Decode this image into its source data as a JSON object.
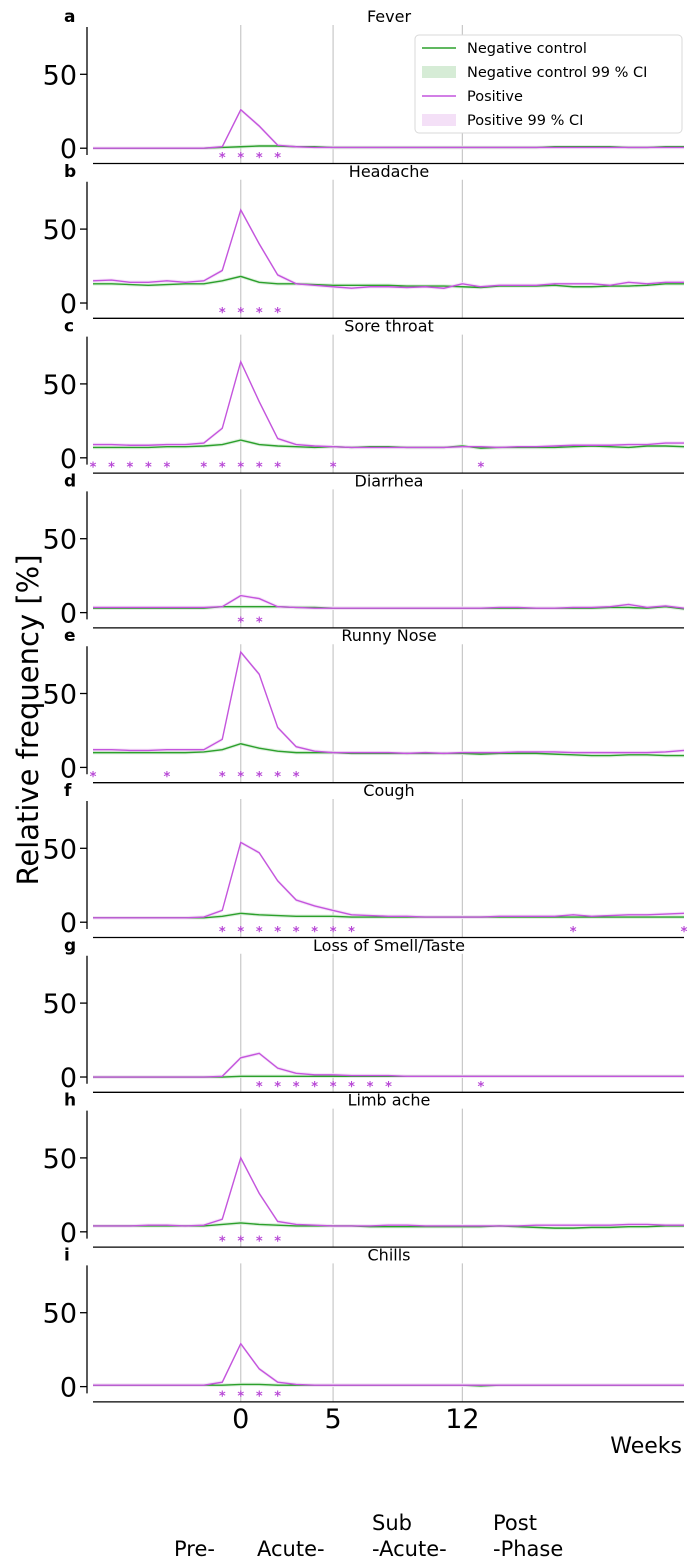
{
  "figure": {
    "ylabel": "Relative frequency [%]",
    "xlabel": "Weeks",
    "x_tick_labels": [
      "0",
      "5",
      "12"
    ],
    "y_tick_labels": [
      "0",
      "50"
    ],
    "phases": [
      "Pre-",
      "Acute-",
      "Sub\n-Acute-",
      "Post\n-Phase"
    ],
    "legend": {
      "placement": "top-right",
      "entries": [
        "Negative control",
        "Negative control 99 % CI",
        "Positive",
        "Positive 99 % CI"
      ]
    },
    "colors": {
      "negative": "#2ca02c",
      "negative_ci": "#d6ecd6",
      "positive": "#c455dd",
      "positive_ci": "#f4e0f7",
      "star": "#b84ad6",
      "vline": "#c8c8c8"
    },
    "significance_marker": "*"
  },
  "chart_data": [
    {
      "type": "line",
      "panel": "a",
      "title": "Fever",
      "ylim": [
        -10,
        82
      ],
      "yticks": [
        0,
        50
      ],
      "x": [
        -8,
        -7,
        -6,
        -5,
        -4,
        -3,
        -2,
        -1,
        0,
        1,
        2,
        3,
        4,
        5,
        6,
        7,
        8,
        9,
        10,
        11,
        12,
        13,
        14,
        15,
        16,
        17,
        18,
        19,
        20,
        21,
        22,
        23,
        24
      ],
      "series": [
        {
          "name": "Negative control",
          "values": [
            0,
            0,
            0,
            0,
            0,
            0,
            0,
            0.5,
            1,
            1.5,
            1.5,
            1,
            1,
            0.5,
            0.5,
            0.5,
            0.5,
            0.5,
            0.5,
            0.5,
            0.5,
            0.5,
            0.5,
            0.5,
            0.5,
            1,
            1,
            1,
            1,
            0.5,
            0.5,
            1,
            1
          ]
        },
        {
          "name": "Positive",
          "values": [
            0,
            0,
            0,
            0,
            0,
            0,
            0,
            1,
            26,
            15,
            2,
            1,
            0.5,
            0.5,
            0.5,
            0.5,
            0.5,
            0.5,
            0.5,
            0.5,
            0.5,
            0.5,
            0.5,
            0.5,
            0.5,
            0.5,
            0.5,
            0.5,
            0.5,
            0.5,
            0.5,
            0.5,
            0.5
          ]
        }
      ],
      "significant_weeks": [
        -1,
        0,
        1,
        2
      ]
    },
    {
      "type": "line",
      "panel": "b",
      "title": "Headache",
      "ylim": [
        -10,
        82
      ],
      "yticks": [
        0,
        50
      ],
      "x": [
        -8,
        -7,
        -6,
        -5,
        -4,
        -3,
        -2,
        -1,
        0,
        1,
        2,
        3,
        4,
        5,
        6,
        7,
        8,
        9,
        10,
        11,
        12,
        13,
        14,
        15,
        16,
        17,
        18,
        19,
        20,
        21,
        22,
        23,
        24
      ],
      "series": [
        {
          "name": "Negative control",
          "values": [
            13,
            13,
            12.5,
            12,
            12.5,
            13,
            13,
            15,
            18,
            14,
            13,
            13,
            12.5,
            12,
            12,
            12,
            12,
            11.5,
            11.5,
            11.5,
            11,
            10.5,
            11.5,
            11.5,
            11.5,
            12,
            11,
            11,
            11.5,
            11.5,
            12,
            13,
            13
          ]
        },
        {
          "name": "Positive",
          "values": [
            15,
            15.5,
            14,
            14,
            15,
            14,
            15,
            22,
            63,
            40,
            19,
            13,
            12,
            11,
            10,
            11,
            11,
            10.5,
            11,
            10,
            13,
            11,
            12,
            12,
            12,
            13,
            13,
            13,
            12,
            14,
            13,
            14,
            14
          ]
        }
      ],
      "significant_weeks": [
        -1,
        0,
        1,
        2
      ]
    },
    {
      "type": "line",
      "panel": "c",
      "title": "Sore throat",
      "ylim": [
        -10,
        82
      ],
      "yticks": [
        0,
        50
      ],
      "x": [
        -8,
        -7,
        -6,
        -5,
        -4,
        -3,
        -2,
        -1,
        0,
        1,
        2,
        3,
        4,
        5,
        6,
        7,
        8,
        9,
        10,
        11,
        12,
        13,
        14,
        15,
        16,
        17,
        18,
        19,
        20,
        21,
        22,
        23,
        24
      ],
      "series": [
        {
          "name": "Negative control",
          "values": [
            7,
            7,
            7,
            7,
            7.5,
            7.5,
            8,
            9,
            12,
            9,
            8,
            7.5,
            7,
            7.5,
            7,
            7.5,
            7.5,
            7,
            7,
            7,
            8,
            6.5,
            7,
            7,
            7,
            7,
            7.5,
            8,
            7.5,
            7,
            8,
            8,
            7.5
          ]
        },
        {
          "name": "Positive",
          "values": [
            9,
            9,
            8.5,
            8.5,
            9,
            9,
            10,
            20,
            65,
            38,
            13,
            9,
            8,
            7.5,
            7,
            7,
            7,
            7,
            7,
            7,
            7.5,
            7.5,
            7,
            7.5,
            7.5,
            8,
            8.5,
            8.5,
            8.5,
            9,
            9,
            10,
            10
          ]
        }
      ],
      "significant_weeks": [
        -8,
        -7,
        -6,
        -5,
        -4,
        -2,
        -1,
        0,
        1,
        2,
        5,
        13
      ]
    },
    {
      "type": "line",
      "panel": "d",
      "title": "Diarrhea",
      "ylim": [
        -10,
        82
      ],
      "yticks": [
        0,
        50
      ],
      "x": [
        -8,
        -7,
        -6,
        -5,
        -4,
        -3,
        -2,
        -1,
        0,
        1,
        2,
        3,
        4,
        5,
        6,
        7,
        8,
        9,
        10,
        11,
        12,
        13,
        14,
        15,
        16,
        17,
        18,
        19,
        20,
        21,
        22,
        23,
        24
      ],
      "series": [
        {
          "name": "Negative control",
          "values": [
            3,
            3,
            3,
            3,
            3,
            3,
            3,
            4,
            4,
            4,
            4,
            3.5,
            3.5,
            3,
            3,
            3,
            3,
            3,
            3,
            3,
            3,
            3,
            3,
            3,
            3,
            3,
            3,
            3,
            3.5,
            3.5,
            3,
            4,
            2.5
          ]
        },
        {
          "name": "Positive",
          "values": [
            3.5,
            3.5,
            3.5,
            3.5,
            3.5,
            3.5,
            3.5,
            4,
            11.5,
            9.5,
            4,
            3.5,
            3,
            3,
            3,
            3,
            3,
            3,
            3,
            3,
            3,
            3,
            3.5,
            3.5,
            3,
            3,
            3.5,
            3.5,
            4,
            5.5,
            3.5,
            4.5,
            3
          ]
        }
      ],
      "significant_weeks": [
        0,
        1
      ]
    },
    {
      "type": "line",
      "panel": "e",
      "title": "Runny Nose",
      "ylim": [
        -10,
        82
      ],
      "yticks": [
        0,
        50
      ],
      "x": [
        -8,
        -7,
        -6,
        -5,
        -4,
        -3,
        -2,
        -1,
        0,
        1,
        2,
        3,
        4,
        5,
        6,
        7,
        8,
        9,
        10,
        11,
        12,
        13,
        14,
        15,
        16,
        17,
        18,
        19,
        20,
        21,
        22,
        23,
        24
      ],
      "series": [
        {
          "name": "Negative control",
          "values": [
            10,
            10,
            10,
            10,
            10,
            10,
            10.5,
            12,
            16,
            13,
            11,
            10,
            10,
            10,
            9.5,
            9.5,
            9.5,
            9.5,
            9.5,
            9.5,
            9.5,
            9,
            9.5,
            9.5,
            9.5,
            9,
            8.5,
            8,
            8,
            8.5,
            8.5,
            8,
            8
          ]
        },
        {
          "name": "Positive",
          "values": [
            12,
            12,
            11.5,
            11.5,
            12,
            12,
            12,
            19,
            78,
            63,
            27,
            14,
            11,
            10,
            10,
            10,
            10,
            9.5,
            10,
            9.5,
            10,
            10,
            10,
            10.5,
            10.5,
            10.5,
            10,
            10,
            10,
            10,
            10,
            10.5,
            11.5
          ]
        }
      ],
      "significant_weeks": [
        -8,
        -4,
        -1,
        0,
        1,
        2,
        3
      ]
    },
    {
      "type": "line",
      "panel": "f",
      "title": "Cough",
      "ylim": [
        -10,
        82
      ],
      "yticks": [
        0,
        50
      ],
      "x": [
        -8,
        -7,
        -6,
        -5,
        -4,
        -3,
        -2,
        -1,
        0,
        1,
        2,
        3,
        4,
        5,
        6,
        7,
        8,
        9,
        10,
        11,
        12,
        13,
        14,
        15,
        16,
        17,
        18,
        19,
        20,
        21,
        22,
        23,
        24
      ],
      "series": [
        {
          "name": "Negative control",
          "values": [
            3,
            3,
            3,
            3,
            3,
            3,
            3,
            4,
            6,
            5,
            4.5,
            4,
            4,
            4,
            3.5,
            3.5,
            3.5,
            3.5,
            3.5,
            3.5,
            3.5,
            3.5,
            3.5,
            3.5,
            3.5,
            3.5,
            3.5,
            3.5,
            3.5,
            3.5,
            3.5,
            3.5,
            3.5
          ]
        },
        {
          "name": "Positive",
          "values": [
            3,
            3,
            3,
            3,
            3,
            3,
            3.5,
            8,
            54,
            47,
            28,
            15,
            11,
            8,
            5,
            4.5,
            4,
            4,
            3.5,
            3.5,
            3.5,
            3.5,
            4,
            4,
            4,
            4,
            5,
            4,
            4.5,
            5,
            5,
            5.5,
            6
          ]
        }
      ],
      "significant_weeks": [
        -1,
        0,
        1,
        2,
        3,
        4,
        5,
        6,
        18,
        24
      ]
    },
    {
      "type": "line",
      "panel": "g",
      "title": "Loss of Smell/Taste",
      "ylim": [
        -10,
        82
      ],
      "yticks": [
        0,
        50
      ],
      "x": [
        -8,
        -7,
        -6,
        -5,
        -4,
        -3,
        -2,
        -1,
        0,
        1,
        2,
        3,
        4,
        5,
        6,
        7,
        8,
        9,
        10,
        11,
        12,
        13,
        14,
        15,
        16,
        17,
        18,
        19,
        20,
        21,
        22,
        23,
        24
      ],
      "series": [
        {
          "name": "Negative control",
          "values": [
            0,
            0,
            0,
            0,
            0,
            0,
            0,
            0,
            0.5,
            0.5,
            0.5,
            0.5,
            0.5,
            0.5,
            0.5,
            0.5,
            0.5,
            0.5,
            0.5,
            0.5,
            0.5,
            0.5,
            0.5,
            0.5,
            0.5,
            0.5,
            0.5,
            0.5,
            0.5,
            0.5,
            0.5,
            0.5,
            0.5
          ]
        },
        {
          "name": "Positive",
          "values": [
            0,
            0,
            0,
            0,
            0,
            0,
            0,
            0.5,
            13,
            16,
            6,
            2.5,
            1.5,
            1.5,
            1,
            1,
            1,
            0.5,
            0.5,
            0.5,
            0.5,
            0.5,
            0.5,
            0.5,
            0.5,
            0.5,
            0.5,
            0.5,
            0.5,
            0.5,
            0.5,
            0.5,
            0.5
          ]
        }
      ],
      "significant_weeks": [
        1,
        2,
        3,
        4,
        5,
        6,
        7,
        8,
        13
      ]
    },
    {
      "type": "line",
      "panel": "h",
      "title": "Limb ache",
      "ylim": [
        -10,
        82
      ],
      "yticks": [
        0,
        50
      ],
      "x": [
        -8,
        -7,
        -6,
        -5,
        -4,
        -3,
        -2,
        -1,
        0,
        1,
        2,
        3,
        4,
        5,
        6,
        7,
        8,
        9,
        10,
        11,
        12,
        13,
        14,
        15,
        16,
        17,
        18,
        19,
        20,
        21,
        22,
        23,
        24
      ],
      "series": [
        {
          "name": "Negative control",
          "values": [
            4,
            4,
            4,
            4,
            4,
            4,
            4,
            5,
            6,
            5,
            4.5,
            4,
            4,
            4,
            4,
            3.5,
            3.5,
            3.5,
            3.5,
            3.5,
            3.5,
            3.5,
            4,
            3.5,
            3,
            2.5,
            2.5,
            3,
            3,
            3.5,
            3.5,
            4,
            4
          ]
        },
        {
          "name": "Positive",
          "values": [
            4,
            4,
            4,
            4.5,
            4.5,
            4,
            4.5,
            8.5,
            50,
            26,
            7,
            5,
            4.5,
            4,
            4,
            4,
            4.5,
            4.5,
            4,
            4,
            4,
            4,
            4,
            4,
            4.5,
            4.5,
            4.5,
            4.5,
            4.5,
            5,
            5,
            4.5,
            4.5
          ]
        }
      ],
      "significant_weeks": [
        -1,
        0,
        1,
        2
      ]
    },
    {
      "type": "line",
      "panel": "i",
      "title": "Chills",
      "ylim": [
        -10,
        82
      ],
      "yticks": [
        0,
        50
      ],
      "x": [
        -8,
        -7,
        -6,
        -5,
        -4,
        -3,
        -2,
        -1,
        0,
        1,
        2,
        3,
        4,
        5,
        6,
        7,
        8,
        9,
        10,
        11,
        12,
        13,
        14,
        15,
        16,
        17,
        18,
        19,
        20,
        21,
        22,
        23,
        24
      ],
      "series": [
        {
          "name": "Negative control",
          "values": [
            1,
            1,
            1,
            1,
            1,
            1,
            1,
            1,
            1.5,
            1.5,
            1,
            1,
            1,
            1,
            1,
            1,
            1,
            1,
            1,
            1,
            1,
            0.5,
            1,
            1,
            1,
            1,
            1,
            1,
            1,
            1,
            1,
            1,
            1
          ]
        },
        {
          "name": "Positive",
          "values": [
            1,
            1,
            1,
            1,
            1,
            1,
            1,
            3,
            29,
            12,
            3,
            1.5,
            1,
            1,
            1,
            1,
            1,
            1,
            1,
            1,
            1,
            1,
            1,
            1,
            1,
            1,
            1,
            1,
            1,
            1,
            1,
            1,
            1
          ]
        }
      ],
      "significant_weeks": [
        -1,
        0,
        1,
        2
      ]
    }
  ]
}
